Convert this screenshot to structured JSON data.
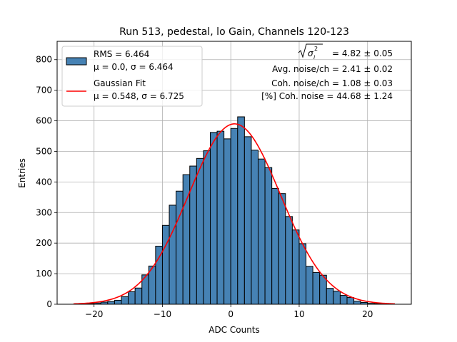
{
  "chart_data": {
    "type": "bar",
    "title": "Run 513, pedestal, lo Gain, Channels 120-123",
    "xlabel": "ADC Counts",
    "ylabel": "Entries",
    "xlim": [
      -25.4,
      26.4
    ],
    "ylim": [
      0,
      860
    ],
    "xticks": [
      -20,
      -10,
      0,
      10,
      20
    ],
    "yticks": [
      0,
      100,
      200,
      300,
      400,
      500,
      600,
      700,
      800
    ],
    "grid": true,
    "legend_position": "top-left",
    "bin_width": 1,
    "bins": [
      -22.5,
      -21.5,
      -20.5,
      -19.5,
      -18.5,
      -17.5,
      -16.5,
      -15.5,
      -14.5,
      -13.5,
      -12.5,
      -11.5,
      -10.5,
      -9.5,
      -8.5,
      -7.5,
      -6.5,
      -5.5,
      -4.5,
      -3.5,
      -2.5,
      -1.5,
      -0.5,
      0.5,
      1.5,
      2.5,
      3.5,
      4.5,
      5.5,
      6.5,
      7.5,
      8.5,
      9.5,
      10.5,
      11.5,
      12.5,
      13.5,
      14.5,
      15.5,
      16.5,
      17.5,
      18.5,
      19.5,
      20.5,
      21.5,
      22.5
    ],
    "histogram": {
      "name": "RMS = 6.464",
      "name_line2": "μ = 0.0, σ = 6.464",
      "color": "#4682b4",
      "values": [
        0,
        1,
        2,
        4,
        7,
        9,
        13,
        25,
        41,
        53,
        96,
        125,
        190,
        258,
        324,
        370,
        424,
        452,
        477,
        502,
        562,
        566,
        541,
        575,
        613,
        548,
        504,
        475,
        447,
        379,
        362,
        287,
        243,
        198,
        124,
        104,
        95,
        52,
        43,
        29,
        22,
        10,
        6,
        3,
        2,
        1
      ]
    },
    "fit": {
      "name": "Gaussian Fit",
      "name_line2": "μ = 0.548, σ = 6.725",
      "color": "#ff0000",
      "mu": 0.548,
      "sigma": 6.725,
      "amplitude": 590,
      "x_range": [
        -23,
        24
      ]
    },
    "annotations": [
      {
        "label": "σ",
        "rest": " = 4.82 ± 0.05"
      },
      {
        "text": "Avg. noise/ch = 2.41 ± 0.02"
      },
      {
        "text": "Coh. noise/ch = 1.08 ± 0.03"
      },
      {
        "text": "[%] Coh. noise = 44.68 ± 1.24"
      }
    ]
  }
}
